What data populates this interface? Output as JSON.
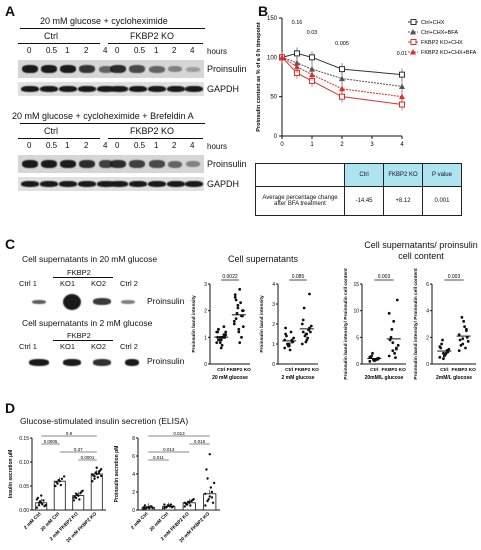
{
  "panel_a": {
    "label": "A",
    "block1": {
      "title": "20 mM glucose + cycloheximide",
      "group_ctrl": "Ctrl",
      "group_ko": "FKBP2 KO",
      "timepoints": [
        "0",
        "0.5",
        "1",
        "2",
        "4",
        "0",
        "0.5",
        "1",
        "2",
        "4"
      ],
      "hours_label": "hours",
      "proinsulin": "Proinsulin",
      "gapdh": "GAPDH"
    },
    "block2": {
      "title": "20 mM glucose + cycloheximide + Brefeldin A",
      "group_ctrl": "Ctrl",
      "group_ko": "FKBP2 KO",
      "timepoints": [
        "0",
        "0.5",
        "1",
        "2",
        "4",
        "0",
        "0.5",
        "1",
        "2",
        "4"
      ],
      "hours_label": "hours",
      "proinsulin": "Proinsulin",
      "gapdh": "GAPDH"
    }
  },
  "panel_b": {
    "label": "B",
    "chart_data": {
      "type": "line",
      "x": [
        0,
        0.5,
        1,
        2,
        4
      ],
      "ylabel": "Proinsulin content as % of a 0 h timepoint",
      "xlabel": "Time (h)",
      "ylim": [
        0,
        150
      ],
      "xlim": [
        0,
        4
      ],
      "yticks": [
        0,
        50,
        100,
        150
      ],
      "xticks": [
        0,
        1,
        2,
        3,
        4
      ],
      "legend_position": "top-right",
      "series": [
        {
          "name": "Ctrl+CHX",
          "values": [
            100,
            105,
            100,
            85,
            78
          ],
          "color": "#333333",
          "marker": "open-square"
        },
        {
          "name": "Ctrl+CHX+BFA",
          "values": [
            100,
            93,
            85,
            73,
            63
          ],
          "color": "#555555",
          "marker": "filled-triangle"
        },
        {
          "name": "FKBP2 KO+CHX",
          "values": [
            100,
            80,
            70,
            50,
            40
          ],
          "color": "#d9302b",
          "marker": "open-square"
        },
        {
          "name": "FKBP2 KO+CHX+BFA",
          "values": [
            100,
            88,
            78,
            60,
            50
          ],
          "color": "#d9302b",
          "marker": "filled-triangle"
        }
      ],
      "annotations": [
        {
          "x": 0.5,
          "text": "0.16"
        },
        {
          "x": 1,
          "text": "0.03"
        },
        {
          "x": 2,
          "text": "0.005"
        },
        {
          "x": 4,
          "text": "0.01"
        }
      ]
    },
    "table": {
      "headers": [
        "",
        "Ctrl",
        "FKBP2 KO",
        "P value"
      ],
      "row_label": "Average percentage change after BFA treatment",
      "values": [
        "-14.45",
        "+8.12",
        "0.001"
      ]
    }
  },
  "panel_c": {
    "label": "C",
    "blot1_title": "Cell supernatants in 20 mM glucose",
    "blot1_group": "FKBP2",
    "blot1_lanes": [
      "Ctrl 1",
      "KO1",
      "KO2",
      "Ctrl 2"
    ],
    "blot2_title": "Cell supernatants in 2 mM glucose",
    "blot2_group": "FKBP2",
    "blot2_lanes": [
      "Ctrl 1",
      "KO1",
      "KO2",
      "Ctrl 2"
    ],
    "proinsulin": "Proinsulin",
    "section1_title": "Cell supernatants",
    "section2_title": "Cell supernatants/ proinsulin cell content",
    "chart_data": [
      {
        "type": "scatter",
        "ylabel": "Proinsulin band intensity",
        "categories": [
          "Ctrl",
          "FKBP2 KO"
        ],
        "xlabel": "20 mM glucose",
        "p": "0.0022",
        "ylim": [
          0,
          3
        ],
        "yticks": [
          "0",
          "1",
          "2",
          "3"
        ],
        "values": [
          [
            0.8,
            1.0,
            1.1,
            1.2,
            0.9,
            1.0,
            1.3,
            0.7,
            1.1,
            0.9,
            1.0,
            1.2,
            0.8,
            1.4,
            1.0,
            0.6,
            1.1,
            0.9,
            1.0,
            1.2
          ],
          [
            1.5,
            2.2,
            1.8,
            2.5,
            1.2,
            2.0,
            1.7,
            2.8,
            1.4,
            1.9,
            2.3,
            1.6,
            2.1,
            1.0,
            2.6,
            1.3,
            1.8,
            2.4,
            0.8,
            2.0
          ]
        ]
      },
      {
        "type": "scatter",
        "ylabel": "Proinsulin band intensity",
        "categories": [
          "Ctrl",
          "FKBP2 KO"
        ],
        "xlabel": "2 mM glucose",
        "p": "0.085",
        "ylim": [
          0,
          4
        ],
        "yticks": [
          "0",
          "1",
          "2",
          "3",
          "4"
        ],
        "values": [
          [
            0.8,
            1.0,
            1.2,
            1.5,
            0.9,
            1.1,
            1.4,
            0.7,
            1.3,
            1.0,
            1.6,
            1.2,
            0.9,
            1.1,
            1.8,
            1.0
          ],
          [
            1.0,
            1.5,
            1.8,
            2.2,
            1.2,
            1.6,
            2.8,
            1.3,
            1.9,
            1.4,
            1.7,
            2.0,
            1.1,
            3.5,
            1.6,
            1.5
          ]
        ]
      },
      {
        "type": "scatter",
        "ylabel": "Proinsulin band intensity/ Proinsulin cell content",
        "categories": [
          "Ctrl",
          "FKBP2 KO"
        ],
        "xlabel": "20mM/L glucose",
        "p": "0.003",
        "ylim": [
          0,
          15
        ],
        "yticks": [
          "0",
          "5",
          "10",
          "15"
        ],
        "values": [
          [
            0.5,
            0.8,
            1.0,
            1.2,
            0.6,
            0.9,
            1.5,
            0.7,
            1.1,
            2.0,
            0.8,
            1.3
          ],
          [
            1.5,
            2.5,
            3.0,
            4.5,
            8.0,
            12.0,
            5.0,
            2.0,
            3.5,
            6.5,
            1.2,
            9.5,
            4.0,
            2.8
          ]
        ]
      },
      {
        "type": "scatter",
        "ylabel": "Proinsulin band intensity/ Proinsulin cell content",
        "categories": [
          "Ctrl",
          "FKBP2 KO"
        ],
        "xlabel": "2mM/L glucose",
        "p": "0.003",
        "ylim": [
          0,
          6
        ],
        "yticks": [
          "0",
          "2",
          "4",
          "6"
        ],
        "values": [
          [
            0.5,
            0.8,
            1.0,
            1.2,
            0.6,
            0.9,
            1.5,
            0.7,
            1.1,
            1.8,
            0.8,
            1.3,
            0.4,
            1.0
          ],
          [
            1.0,
            1.5,
            2.5,
            1.8,
            3.2,
            2.0,
            1.4,
            2.8,
            1.7,
            3.5,
            1.2,
            2.2,
            1.9,
            2.6
          ]
        ]
      }
    ]
  },
  "panel_d": {
    "label": "D",
    "title": "Glucose-stimulated insulin secretion (ELISA)",
    "chart_data": [
      {
        "type": "bar",
        "ylabel": "Insulin secretion μM",
        "ylim": [
          0,
          0.15
        ],
        "yticks": [
          "0.00",
          "0.05",
          "0.10",
          "0.15"
        ],
        "categories": [
          "2 mM Ctrl",
          "20 mM Ctrl",
          "2 mM FKBP2 KO",
          "20 mM FKBP2 KO"
        ],
        "values": [
          0.015,
          0.06,
          0.03,
          0.075
        ],
        "pvalues": [
          {
            "pair": [
              0,
              3
            ],
            "text": "0.9"
          },
          {
            "pair": [
              0,
              1
            ],
            "text": "0.0005"
          },
          {
            "pair": [
              1,
              3
            ],
            "text": "0.37"
          },
          {
            "pair": [
              2,
              3
            ],
            "text": "0.0001"
          }
        ],
        "points": [
          [
            0.005,
            0.01,
            0.015,
            0.02,
            0.01,
            0.025,
            0.018,
            0.012,
            0.008,
            0.022,
            0.015,
            0.03
          ],
          [
            0.05,
            0.055,
            0.06,
            0.065,
            0.07,
            0.058,
            0.062,
            0.052
          ],
          [
            0.02,
            0.025,
            0.03,
            0.035,
            0.04,
            0.028,
            0.032,
            0.022,
            0.038,
            0.026,
            0.034,
            0.03
          ],
          [
            0.06,
            0.07,
            0.075,
            0.08,
            0.085,
            0.072,
            0.078,
            0.068,
            0.082,
            0.074,
            0.065,
            0.088,
            0.076,
            0.071
          ]
        ]
      },
      {
        "type": "bar",
        "ylabel": "Proinsulin secretion pM",
        "ylim": [
          0,
          8
        ],
        "yticks": [
          "0",
          "2",
          "4",
          "6",
          "8"
        ],
        "categories": [
          "2 mM Ctrl",
          "20 mM Ctrl",
          "2 mM FKBP2 KO",
          "20 mM FKBP2 KO"
        ],
        "values": [
          0.3,
          0.4,
          0.8,
          1.8
        ],
        "pvalues": [
          {
            "pair": [
              0,
              3
            ],
            "text": "0.013"
          },
          {
            "pair": [
              2,
              3
            ],
            "text": "0.016"
          },
          {
            "pair": [
              0,
              2
            ],
            "text": "0.013"
          },
          {
            "pair": [
              0,
              1
            ],
            "text": "0.011"
          }
        ],
        "points": [
          [
            0.1,
            0.2,
            0.3,
            0.4,
            0.2,
            0.5,
            0.3,
            0.2,
            0.4,
            0.3,
            0.2
          ],
          [
            0.2,
            0.3,
            0.5,
            0.6,
            0.4,
            0.3,
            0.5,
            0.4,
            0.3,
            0.6
          ],
          [
            0.4,
            0.6,
            0.8,
            1.0,
            1.2,
            0.7,
            0.9,
            0.5,
            1.1,
            0.8,
            0.6,
            0.9
          ],
          [
            0.5,
            1.0,
            1.5,
            2.0,
            3.0,
            4.5,
            1.2,
            2.5,
            0.8,
            1.8,
            3.5,
            6.2,
            1.4
          ]
        ]
      }
    ]
  }
}
